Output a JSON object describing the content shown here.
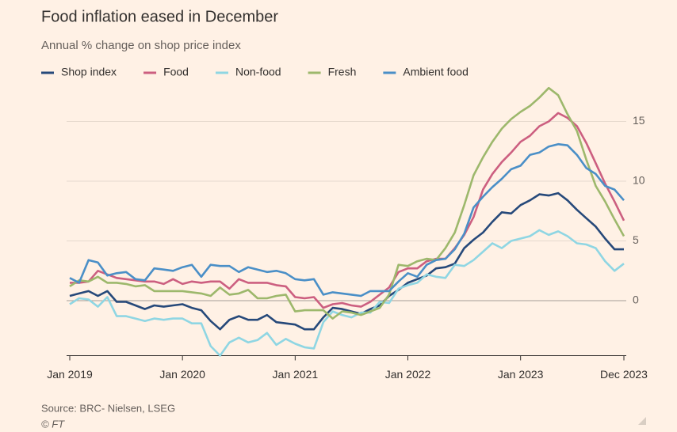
{
  "chart_data": {
    "type": "line",
    "title": "Food inflation eased in December",
    "subtitle": "Annual % change on shop price index",
    "source": "Source: BRC- Nielsen, LSEG",
    "credit": "© FT",
    "x": [
      "2019-01",
      "2019-02",
      "2019-03",
      "2019-04",
      "2019-05",
      "2019-06",
      "2019-07",
      "2019-08",
      "2019-09",
      "2019-10",
      "2019-11",
      "2019-12",
      "2020-01",
      "2020-02",
      "2020-03",
      "2020-04",
      "2020-05",
      "2020-06",
      "2020-07",
      "2020-08",
      "2020-09",
      "2020-10",
      "2020-11",
      "2020-12",
      "2021-01",
      "2021-02",
      "2021-03",
      "2021-04",
      "2021-05",
      "2021-06",
      "2021-07",
      "2021-08",
      "2021-09",
      "2021-10",
      "2021-11",
      "2021-12",
      "2022-01",
      "2022-02",
      "2022-03",
      "2022-04",
      "2022-05",
      "2022-06",
      "2022-07",
      "2022-08",
      "2022-09",
      "2022-10",
      "2022-11",
      "2022-12",
      "2023-01",
      "2023-02",
      "2023-03",
      "2023-04",
      "2023-05",
      "2023-06",
      "2023-07",
      "2023-08",
      "2023-09",
      "2023-10",
      "2023-11",
      "2023-12"
    ],
    "xticks": [
      {
        "value": "2019-01",
        "label": "Jan 2019"
      },
      {
        "value": "2020-01",
        "label": "Jan 2020"
      },
      {
        "value": "2021-01",
        "label": "Jan 2021"
      },
      {
        "value": "2022-01",
        "label": "Jan 2022"
      },
      {
        "value": "2023-01",
        "label": "Jan 2023"
      },
      {
        "value": "2023-12",
        "label": "Dec 2023"
      }
    ],
    "ylim": [
      -4.6,
      18
    ],
    "yticks": [
      0,
      5,
      10,
      15
    ],
    "grid": true,
    "legend": "top-left",
    "series": [
      {
        "name": "Shop index",
        "color": "#26497a",
        "values": [
          0.4,
          0.6,
          0.8,
          0.4,
          0.8,
          -0.1,
          -0.1,
          -0.4,
          -0.7,
          -0.4,
          -0.5,
          -0.4,
          -0.3,
          -0.6,
          -0.8,
          -1.7,
          -2.4,
          -1.6,
          -1.3,
          -1.6,
          -1.6,
          -1.2,
          -1.8,
          -1.9,
          -2.0,
          -2.4,
          -2.4,
          -1.4,
          -0.6,
          -0.7,
          -0.9,
          -1.1,
          -0.7,
          -0.4,
          0.4,
          0.9,
          1.5,
          1.8,
          2.1,
          2.7,
          2.8,
          3.1,
          4.4,
          5.1,
          5.7,
          6.6,
          7.4,
          7.3,
          8.0,
          8.4,
          8.9,
          8.8,
          9.0,
          8.4,
          7.6,
          6.9,
          6.2,
          5.2,
          4.3,
          4.3
        ]
      },
      {
        "name": "Food",
        "color": "#cc5f80",
        "values": [
          1.5,
          1.5,
          1.6,
          2.5,
          2.2,
          1.9,
          1.8,
          1.7,
          1.6,
          1.6,
          1.4,
          1.8,
          1.4,
          1.6,
          1.5,
          1.6,
          1.6,
          1.0,
          1.8,
          1.5,
          1.5,
          1.5,
          1.3,
          1.2,
          0.3,
          0.2,
          0.3,
          -0.6,
          -0.3,
          -0.2,
          -0.4,
          -0.5,
          -0.1,
          0.5,
          1.1,
          2.4,
          2.7,
          2.7,
          3.3,
          3.5,
          3.5,
          4.4,
          5.5,
          7.0,
          9.3,
          10.6,
          11.6,
          12.4,
          13.3,
          13.8,
          14.6,
          15.0,
          15.7,
          15.3,
          14.6,
          13.2,
          11.5,
          9.8,
          8.3,
          6.7
        ]
      },
      {
        "name": "Non-food",
        "color": "#8fd6e3",
        "values": [
          -0.3,
          0.2,
          0.1,
          -0.5,
          0.3,
          -1.3,
          -1.3,
          -1.5,
          -1.7,
          -1.5,
          -1.6,
          -1.5,
          -1.5,
          -1.9,
          -1.9,
          -3.8,
          -4.6,
          -3.5,
          -3.1,
          -3.5,
          -3.3,
          -2.7,
          -3.7,
          -3.2,
          -3.6,
          -3.9,
          -4.0,
          -1.8,
          -0.9,
          -1.2,
          -1.4,
          -1.0,
          -1.0,
          -0.1,
          -0.2,
          1.0,
          1.3,
          1.5,
          2.2,
          2.0,
          1.9,
          3.0,
          2.9,
          3.4,
          4.1,
          4.8,
          4.4,
          5.0,
          5.2,
          5.4,
          5.9,
          5.5,
          5.8,
          5.4,
          4.8,
          4.7,
          4.4,
          3.3,
          2.5,
          3.1
        ]
      },
      {
        "name": "Fresh",
        "color": "#9db86c",
        "values": [
          1.2,
          1.7,
          1.6,
          2.0,
          1.5,
          1.5,
          1.4,
          1.2,
          1.3,
          0.8,
          0.8,
          0.8,
          0.8,
          0.7,
          0.6,
          0.4,
          1.1,
          0.5,
          0.6,
          0.9,
          0.2,
          0.2,
          0.4,
          0.5,
          -0.9,
          -0.8,
          -0.8,
          -0.8,
          -1.5,
          -0.9,
          -1.0,
          -1.2,
          -0.9,
          -0.6,
          0.5,
          3.0,
          2.9,
          3.3,
          3.5,
          3.4,
          4.4,
          5.7,
          8.0,
          10.5,
          12.0,
          13.3,
          14.4,
          15.2,
          15.8,
          16.3,
          17.0,
          17.8,
          17.2,
          15.6,
          14.2,
          11.8,
          9.6,
          8.3,
          6.8,
          5.4
        ]
      },
      {
        "name": "Ambient food",
        "color": "#4a8fc7",
        "values": [
          1.9,
          1.5,
          3.4,
          3.2,
          2.1,
          2.3,
          2.4,
          1.8,
          1.7,
          2.7,
          2.6,
          2.5,
          2.8,
          3.0,
          2.0,
          3.0,
          2.9,
          2.9,
          2.4,
          2.8,
          2.6,
          2.4,
          2.5,
          2.3,
          1.8,
          1.7,
          1.8,
          0.5,
          0.7,
          0.6,
          0.5,
          0.4,
          0.8,
          0.8,
          0.8,
          1.6,
          2.3,
          2.0,
          3.0,
          3.4,
          3.5,
          4.3,
          5.6,
          7.8,
          8.7,
          9.5,
          10.2,
          11.0,
          11.3,
          12.2,
          12.4,
          12.9,
          13.1,
          13.0,
          12.2,
          11.1,
          10.6,
          9.6,
          9.3,
          8.4
        ]
      }
    ]
  }
}
